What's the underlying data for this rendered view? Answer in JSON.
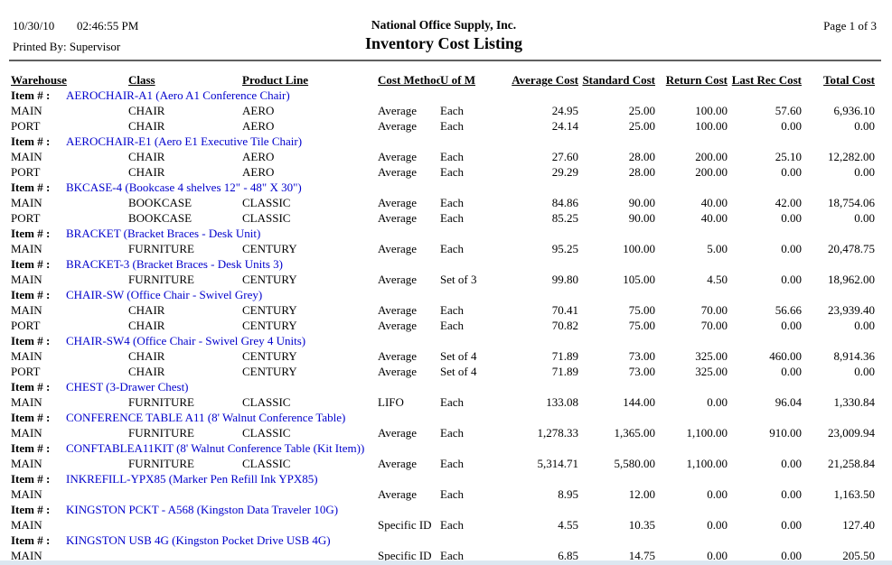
{
  "report": {
    "date": "10/30/10",
    "time": "02:46:55 PM",
    "printed_by": "Printed By: Supervisor",
    "company": "National Office Supply, Inc.",
    "title": "Inventory Cost Listing",
    "page": "Page 1 of 3"
  },
  "colors": {
    "item_link_blue": "#0000cc",
    "rule_gray": "#5f5f5f",
    "bottom_strip": "#dce7f1"
  },
  "table": {
    "item_label": "Item # :",
    "headers": [
      "Warehouse",
      "Class",
      "Product Line",
      "Cost Method",
      "U of M",
      "Average Cost",
      "Standard Cost",
      "Return Cost",
      "Last Rec Cost",
      "Total Cost"
    ],
    "groups": [
      {
        "item": "AEROCHAIR-A1 (Aero A1 Conference Chair)",
        "rows": [
          [
            "MAIN",
            "CHAIR",
            "AERO",
            "Average",
            "Each",
            "24.95",
            "25.00",
            "100.00",
            "57.60",
            "6,936.10"
          ],
          [
            "PORT",
            "CHAIR",
            "AERO",
            "Average",
            "Each",
            "24.14",
            "25.00",
            "100.00",
            "0.00",
            "0.00"
          ]
        ]
      },
      {
        "item": "AEROCHAIR-E1 (Aero E1 Executive Tile Chair)",
        "rows": [
          [
            "MAIN",
            "CHAIR",
            "AERO",
            "Average",
            "Each",
            "27.60",
            "28.00",
            "200.00",
            "25.10",
            "12,282.00"
          ],
          [
            "PORT",
            "CHAIR",
            "AERO",
            "Average",
            "Each",
            "29.29",
            "28.00",
            "200.00",
            "0.00",
            "0.00"
          ]
        ]
      },
      {
        "item": "BKCASE-4 (Bookcase 4 shelves 12\" - 48\" X 30\")",
        "rows": [
          [
            "MAIN",
            "BOOKCASE",
            "CLASSIC",
            "Average",
            "Each",
            "84.86",
            "90.00",
            "40.00",
            "42.00",
            "18,754.06"
          ],
          [
            "PORT",
            "BOOKCASE",
            "CLASSIC",
            "Average",
            "Each",
            "85.25",
            "90.00",
            "40.00",
            "0.00",
            "0.00"
          ]
        ]
      },
      {
        "item": "BRACKET (Bracket Braces - Desk Unit)",
        "rows": [
          [
            "MAIN",
            "FURNITURE",
            "CENTURY",
            "Average",
            "Each",
            "95.25",
            "100.00",
            "5.00",
            "0.00",
            "20,478.75"
          ]
        ]
      },
      {
        "item": "BRACKET-3 (Bracket Braces - Desk Units 3)",
        "rows": [
          [
            "MAIN",
            "FURNITURE",
            "CENTURY",
            "Average",
            "Set of 3",
            "99.80",
            "105.00",
            "4.50",
            "0.00",
            "18,962.00"
          ]
        ]
      },
      {
        "item": "CHAIR-SW (Office Chair - Swivel Grey)",
        "rows": [
          [
            "MAIN",
            "CHAIR",
            "CENTURY",
            "Average",
            "Each",
            "70.41",
            "75.00",
            "70.00",
            "56.66",
            "23,939.40"
          ],
          [
            "PORT",
            "CHAIR",
            "CENTURY",
            "Average",
            "Each",
            "70.82",
            "75.00",
            "70.00",
            "0.00",
            "0.00"
          ]
        ]
      },
      {
        "item": "CHAIR-SW4 (Office Chair - Swivel Grey 4 Units)",
        "rows": [
          [
            "MAIN",
            "CHAIR",
            "CENTURY",
            "Average",
            "Set of 4",
            "71.89",
            "73.00",
            "325.00",
            "460.00",
            "8,914.36"
          ],
          [
            "PORT",
            "CHAIR",
            "CENTURY",
            "Average",
            "Set of 4",
            "71.89",
            "73.00",
            "325.00",
            "0.00",
            "0.00"
          ]
        ]
      },
      {
        "item": "CHEST (3-Drawer Chest)",
        "rows": [
          [
            "MAIN",
            "FURNITURE",
            "CLASSIC",
            "LIFO",
            "Each",
            "133.08",
            "144.00",
            "0.00",
            "96.04",
            "1,330.84"
          ]
        ]
      },
      {
        "item": "CONFERENCE TABLE A11 (8' Walnut Conference Table)",
        "rows": [
          [
            "MAIN",
            "FURNITURE",
            "CLASSIC",
            "Average",
            "Each",
            "1,278.33",
            "1,365.00",
            "1,100.00",
            "910.00",
            "23,009.94"
          ]
        ]
      },
      {
        "item": "CONFTABLEA11KIT (8' Walnut Conference Table (Kit Item))",
        "rows": [
          [
            "MAIN",
            "FURNITURE",
            "CLASSIC",
            "Average",
            "Each",
            "5,314.71",
            "5,580.00",
            "1,100.00",
            "0.00",
            "21,258.84"
          ]
        ]
      },
      {
        "item": "INKREFILL-YPX85 (Marker Pen Refill Ink YPX85)",
        "rows": [
          [
            "MAIN",
            "",
            "",
            "Average",
            "Each",
            "8.95",
            "12.00",
            "0.00",
            "0.00",
            "1,163.50"
          ]
        ]
      },
      {
        "item": "KINGSTON PCKT - A568 (Kingston Data Traveler 10G)",
        "rows": [
          [
            "MAIN",
            "",
            "",
            "Specific ID",
            "Each",
            "4.55",
            "10.35",
            "0.00",
            "0.00",
            "127.40"
          ]
        ]
      },
      {
        "item": "KINGSTON USB 4G (Kingston Pocket Drive USB 4G)",
        "rows": [
          [
            "MAIN",
            "",
            "",
            "Specific ID",
            "Each",
            "6.85",
            "14.75",
            "0.00",
            "0.00",
            "205.50"
          ]
        ]
      }
    ]
  }
}
